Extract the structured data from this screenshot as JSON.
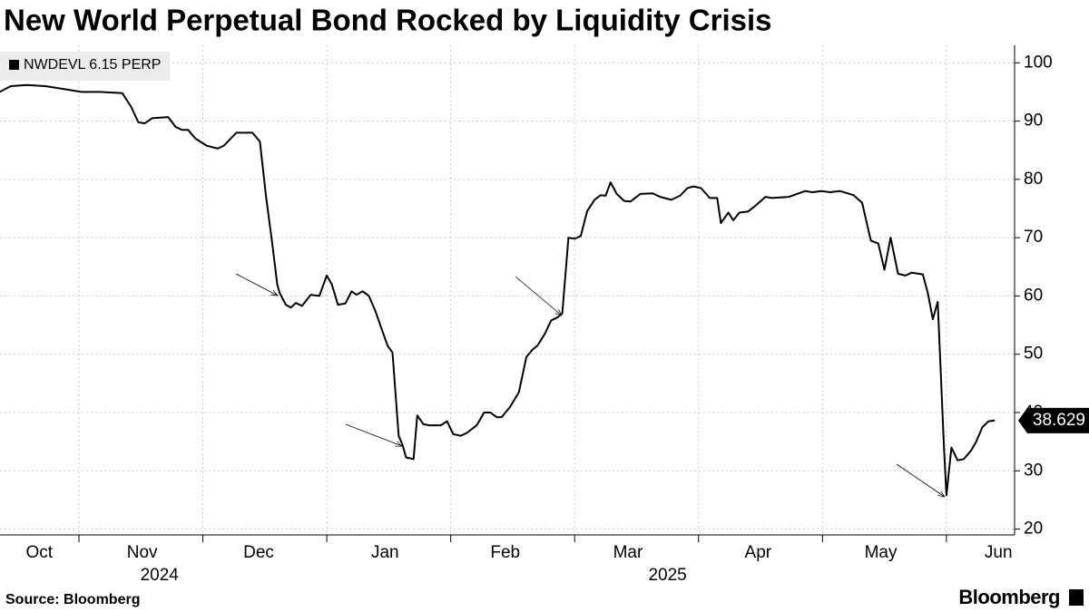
{
  "chart_data": {
    "type": "line",
    "title": "New World Perpetual Bond Rocked by Liquidity Crisis",
    "source": "Source: Bloomberg",
    "logo": "Bloomberg",
    "legend": "upper left",
    "grid": true,
    "series": [
      {
        "name": "NWDEVL 6.15 PERP",
        "color": "#000000",
        "x": [
          10.36,
          10.45,
          10.58,
          10.73,
          10.88,
          11.02,
          11.17,
          11.35,
          11.42,
          11.48,
          11.53,
          11.59,
          11.72,
          11.78,
          11.83,
          11.88,
          11.94,
          12.03,
          12.12,
          12.17,
          12.27,
          12.4,
          12.46,
          12.51,
          12.56,
          12.6,
          12.62,
          12.67,
          12.71,
          12.75,
          12.8,
          12.87,
          12.94,
          13.0,
          13.04,
          13.09,
          13.15,
          13.2,
          13.24,
          13.29,
          13.34,
          13.39,
          13.44,
          13.49,
          13.53,
          13.58,
          13.61,
          13.64,
          13.7,
          13.73,
          13.78,
          13.83,
          13.92,
          13.97,
          14.02,
          14.08,
          14.13,
          14.21,
          14.27,
          14.32,
          14.37,
          14.41,
          14.48,
          14.55,
          14.61,
          14.66,
          14.7,
          14.76,
          14.81,
          14.86,
          14.9,
          14.95,
          15.0,
          15.05,
          15.1,
          15.16,
          15.21,
          15.25,
          15.29,
          15.34,
          15.4,
          15.45,
          15.53,
          15.63,
          15.69,
          15.78,
          15.85,
          15.91,
          15.96,
          16.02,
          16.09,
          16.15,
          16.18,
          16.24,
          16.28,
          16.33,
          16.4,
          16.46,
          16.54,
          16.59,
          16.73,
          16.86,
          16.92,
          16.99,
          17.06,
          17.14,
          17.25,
          17.32,
          17.39,
          17.45,
          17.5,
          17.55,
          17.61,
          17.67,
          17.72,
          17.81,
          17.85,
          17.89,
          17.93,
          17.98,
          18.0,
          18.04,
          18.09,
          18.14,
          18.2,
          18.24,
          18.29,
          18.34,
          18.39
        ],
        "values": [
          95,
          96,
          96.2,
          96,
          95.5,
          95,
          95,
          94.8,
          92.5,
          89.8,
          89.6,
          90.5,
          90.7,
          89,
          88.5,
          88.5,
          87,
          85.8,
          85.3,
          85.8,
          88,
          88,
          86.5,
          77,
          69,
          62,
          60.5,
          58.5,
          58,
          58.8,
          58.3,
          60.2,
          60,
          63.5,
          62,
          58.5,
          58.7,
          60.8,
          60.2,
          60.8,
          60,
          57.5,
          54.5,
          51.5,
          50.3,
          36,
          34.5,
          32.3,
          32,
          39.5,
          38,
          37.8,
          37.8,
          38.5,
          36.3,
          36,
          36.5,
          37.8,
          40,
          40,
          39.2,
          39.2,
          41,
          43.5,
          49.5,
          50.8,
          51.5,
          53.5,
          55.8,
          56.3,
          57,
          70,
          69.8,
          70.3,
          74.5,
          76.5,
          77.3,
          77.2,
          79.5,
          77.5,
          76.3,
          76.2,
          77.5,
          77.6,
          77,
          76.5,
          77.2,
          78.5,
          78.8,
          78.5,
          76.8,
          76.8,
          72.5,
          74.3,
          73,
          74.3,
          74.5,
          75.5,
          77,
          76.8,
          77,
          78,
          77.8,
          78,
          77.8,
          78,
          77.3,
          76,
          69.5,
          69,
          64.5,
          70,
          63.8,
          63.5,
          64,
          63.7,
          60.5,
          56,
          59,
          34,
          25.8,
          34,
          31.8,
          32,
          33.5,
          35,
          37.5,
          38.5,
          38.629
        ]
      }
    ],
    "xlim": [
      10.363,
      18.55
    ],
    "xticks": [
      {
        "value": 10.68,
        "label": "Oct"
      },
      {
        "value": 11.51,
        "label": "Nov"
      },
      {
        "value": 12.45,
        "label": "Dec"
      },
      {
        "value": 13.47,
        "label": "Jan"
      },
      {
        "value": 14.44,
        "label": "Feb"
      },
      {
        "value": 15.43,
        "label": "Mar"
      },
      {
        "value": 16.48,
        "label": "Apr"
      },
      {
        "value": 17.47,
        "label": "May"
      },
      {
        "value": 18.42,
        "label": "Jun"
      }
    ],
    "xgrid": [
      11,
      12,
      13,
      14,
      15,
      16,
      17,
      18
    ],
    "x_year_labels": [
      {
        "value": 11.65,
        "label": "2024"
      },
      {
        "value": 15.75,
        "label": "2025"
      }
    ],
    "ylim": [
      19,
      103
    ],
    "yticks": [
      20,
      30,
      40,
      50,
      60,
      70,
      80,
      90,
      100
    ]
  }
}
